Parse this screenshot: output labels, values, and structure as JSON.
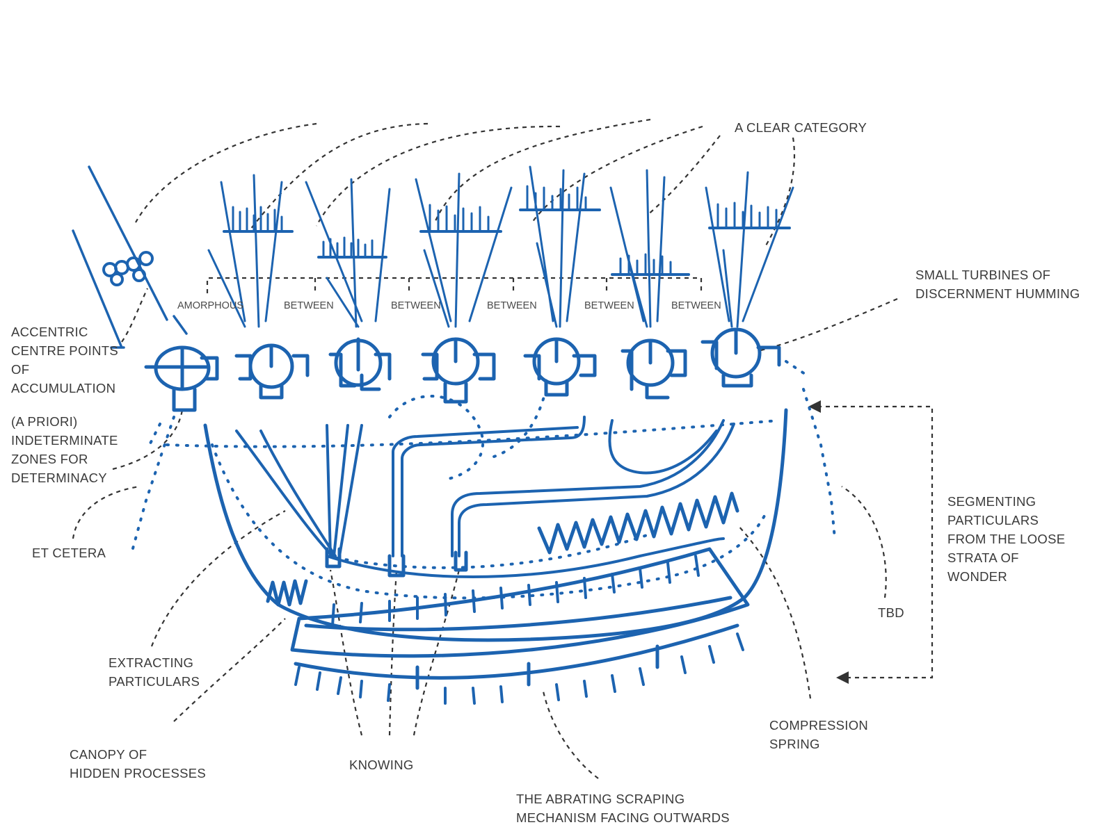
{
  "labels": {
    "clear_category": "A CLEAR CATEGORY",
    "turbines": [
      "SMALL TURBINES OF",
      "DISCERNMENT HUMMING"
    ],
    "accentric": [
      "ACCENTRIC",
      "CENTRE POINTS",
      "OF",
      "ACCUMULATION"
    ],
    "a_priori": [
      "(A PRIORI)",
      "INDETERMINATE",
      "ZONES FOR",
      "DETERMINACY"
    ],
    "et_cetera": "ET CETERA",
    "segmenting": [
      "SEGMENTING",
      "PARTICULARS",
      "FROM THE LOOSE",
      "STRATA OF",
      "WONDER"
    ],
    "tbd": "TBD",
    "extracting": [
      "EXTRACTING",
      "PARTICULARS"
    ],
    "canopy": [
      "CANOPY OF",
      "HIDDEN PROCESSES"
    ],
    "knowing": "KNOWING",
    "compression": [
      "COMPRESSION",
      "SPRING"
    ],
    "abrating": [
      "THE ABRATING SCRAPING",
      "MECHANISM FACING OUTWARDS"
    ]
  },
  "bracket_labels": [
    "AMORPHOUS",
    "BETWEEN",
    "BETWEEN",
    "BETWEEN",
    "BETWEEN",
    "BETWEEN"
  ],
  "colors": {
    "ink": "#1c63b0",
    "annotation": "#333333"
  }
}
